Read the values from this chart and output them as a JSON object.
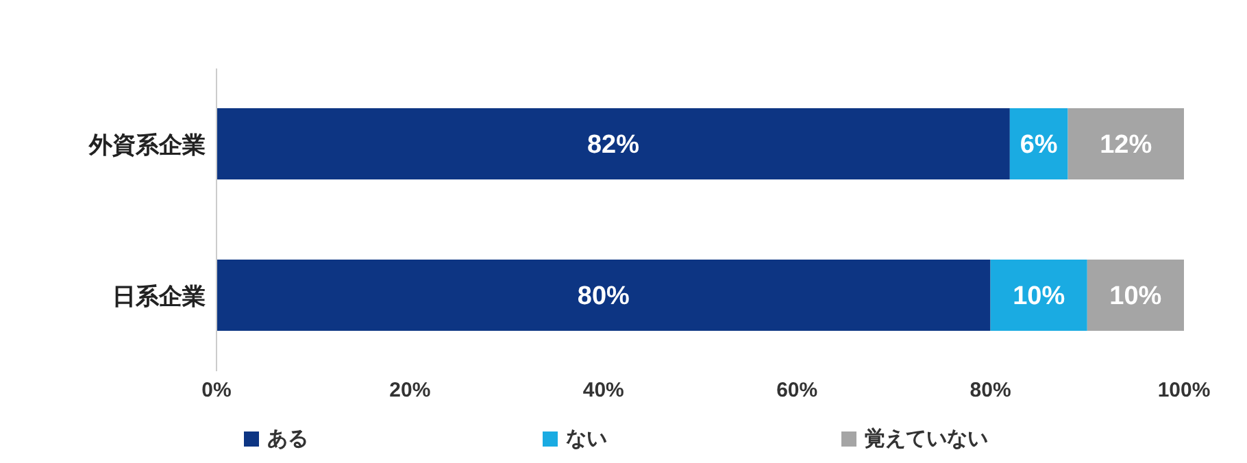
{
  "chart_data": {
    "type": "bar",
    "orientation": "horizontal",
    "stacked": true,
    "categories": [
      "外資系企業",
      "日系企業"
    ],
    "series": [
      {
        "name": "ある",
        "color": "#0d3583",
        "values": [
          82,
          80
        ],
        "value_labels": [
          "82%",
          "80%"
        ]
      },
      {
        "name": "ない",
        "color": "#1aabe2",
        "values": [
          6,
          10
        ],
        "value_labels": [
          "6%",
          "10%"
        ]
      },
      {
        "name": "覚えていない",
        "color": "#a5a5a5",
        "values": [
          12,
          10
        ],
        "value_labels": [
          "12%",
          "10%"
        ]
      }
    ],
    "xlim": [
      0,
      100
    ],
    "xticks": [
      {
        "value": 0,
        "label": "0%"
      },
      {
        "value": 20,
        "label": "20%"
      },
      {
        "value": 40,
        "label": "40%"
      },
      {
        "value": 60,
        "label": "60%"
      },
      {
        "value": 80,
        "label": "80%"
      },
      {
        "value": 100,
        "label": "100%"
      }
    ],
    "grid": false,
    "legend": "bottom"
  }
}
